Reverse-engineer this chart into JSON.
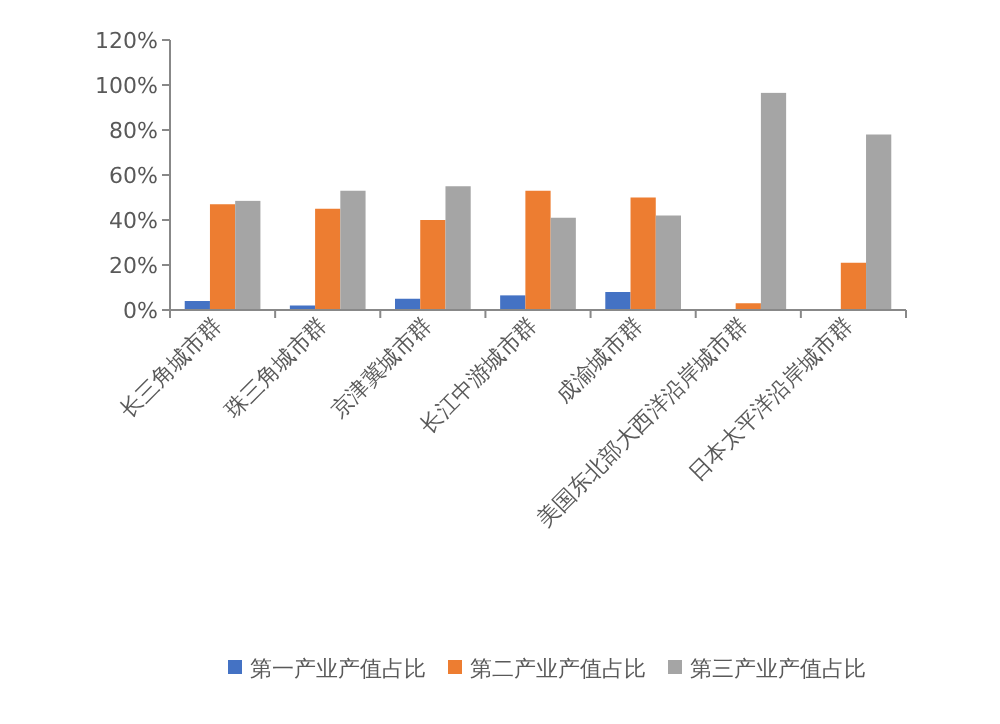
{
  "chart_data": {
    "type": "bar",
    "categories": [
      "长三角城市群",
      "珠三角城市群",
      "京津冀城市群",
      "长江中游城市群",
      "成渝城市群",
      "美国东北部大西洋沿岸城市群",
      "日本太平洋沿岸城市群"
    ],
    "series": [
      {
        "name": "第一产业产值占比",
        "color": "#4472c4",
        "values": [
          4,
          2,
          5,
          6.5,
          8,
          null,
          null
        ]
      },
      {
        "name": "第二产业产值占比",
        "color": "#ed7d31",
        "values": [
          47,
          45,
          40,
          53,
          50,
          3,
          21
        ]
      },
      {
        "name": "第三产业产值占比",
        "color": "#a5a5a5",
        "values": [
          48.5,
          53,
          55,
          41,
          42,
          96.5,
          78
        ]
      }
    ],
    "ylim": [
      0,
      120
    ],
    "yticks": [
      {
        "value": 0,
        "label": "0%"
      },
      {
        "value": 20,
        "label": "20%"
      },
      {
        "value": 40,
        "label": "40%"
      },
      {
        "value": 60,
        "label": "60%"
      },
      {
        "value": 80,
        "label": "80%"
      },
      {
        "value": 100,
        "label": "100%"
      },
      {
        "value": 120,
        "label": "120%"
      }
    ],
    "grid": false,
    "legend": "bottom"
  }
}
